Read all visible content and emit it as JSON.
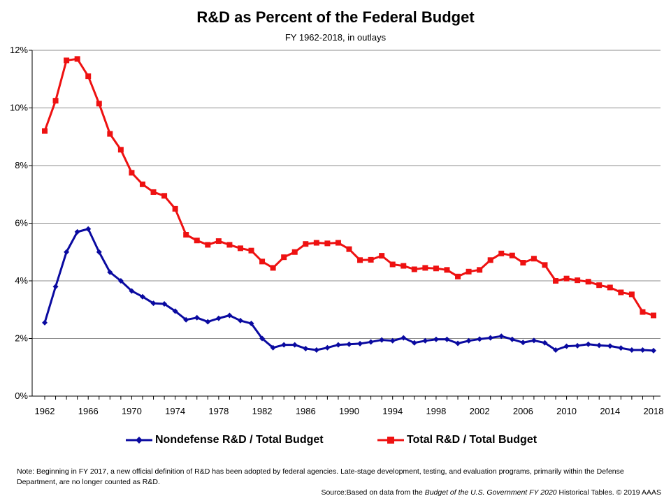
{
  "chart_data": {
    "type": "line",
    "title": "R&D as Percent of the Federal Budget",
    "subtitle": "FY 1962-2018, in outlays",
    "x": [
      1962,
      1963,
      1964,
      1965,
      1966,
      1967,
      1968,
      1969,
      1970,
      1971,
      1972,
      1973,
      1974,
      1975,
      1976,
      1977,
      1978,
      1979,
      1980,
      1981,
      1982,
      1983,
      1984,
      1985,
      1986,
      1987,
      1988,
      1989,
      1990,
      1991,
      1992,
      1993,
      1994,
      1995,
      1996,
      1997,
      1998,
      1999,
      2000,
      2001,
      2002,
      2003,
      2004,
      2005,
      2006,
      2007,
      2008,
      2009,
      2010,
      2011,
      2012,
      2013,
      2014,
      2015,
      2016,
      2017,
      2018
    ],
    "x_ticks": [
      "1962",
      "1966",
      "1970",
      "1974",
      "1978",
      "1982",
      "1986",
      "1990",
      "1994",
      "1998",
      "2002",
      "2006",
      "2010",
      "2014",
      "2018"
    ],
    "y_ticks": [
      "0%",
      "2%",
      "4%",
      "6%",
      "8%",
      "10%",
      "12%"
    ],
    "ylim": [
      0,
      12
    ],
    "xlim": [
      1962,
      2018
    ],
    "grid": true,
    "legend": "bottom",
    "series": [
      {
        "name": "Nondefense R&D / Total Budget",
        "color": "#0a0aa0",
        "marker": "diamond",
        "values": [
          2.55,
          3.8,
          5.0,
          5.7,
          5.8,
          5.0,
          4.3,
          4.0,
          3.65,
          3.45,
          3.22,
          3.2,
          2.95,
          2.65,
          2.72,
          2.58,
          2.7,
          2.8,
          2.62,
          2.52,
          2.0,
          1.68,
          1.78,
          1.78,
          1.65,
          1.6,
          1.68,
          1.78,
          1.8,
          1.82,
          1.88,
          1.95,
          1.92,
          2.02,
          1.85,
          1.92,
          1.97,
          1.97,
          1.83,
          1.92,
          1.98,
          2.02,
          2.08,
          1.97,
          1.86,
          1.93,
          1.85,
          1.6,
          1.73,
          1.75,
          1.8,
          1.76,
          1.74,
          1.67,
          1.6,
          1.6,
          1.58
        ]
      },
      {
        "name": "Total R&D / Total Budget",
        "color": "#ee1111",
        "marker": "square",
        "values": [
          9.2,
          10.25,
          11.65,
          11.7,
          11.1,
          10.15,
          9.1,
          8.55,
          7.75,
          7.35,
          7.08,
          6.95,
          6.5,
          5.6,
          5.4,
          5.25,
          5.38,
          5.25,
          5.13,
          5.05,
          4.67,
          4.45,
          4.82,
          5.0,
          5.28,
          5.32,
          5.3,
          5.32,
          5.1,
          4.72,
          4.73,
          4.87,
          4.57,
          4.52,
          4.4,
          4.45,
          4.43,
          4.38,
          4.15,
          4.32,
          4.38,
          4.72,
          4.95,
          4.88,
          4.63,
          4.77,
          4.55,
          4.0,
          4.08,
          4.02,
          3.97,
          3.85,
          3.77,
          3.6,
          3.53,
          2.92,
          2.8
        ]
      }
    ]
  },
  "footer": {
    "note": "Note:  Beginning in FY 2017, a new  official definition of R&D has been adopted by federal agencies. Late-stage development,  testing, and evaluation programs, primarily within the Defense Department,  are no longer counted as R&D.",
    "source_prefix": "Source:Based on data from the ",
    "source_italic": "Budget of the U.S.  Government  FY 2020",
    "source_suffix": " Historical Tables. © 2019 AAAS"
  }
}
